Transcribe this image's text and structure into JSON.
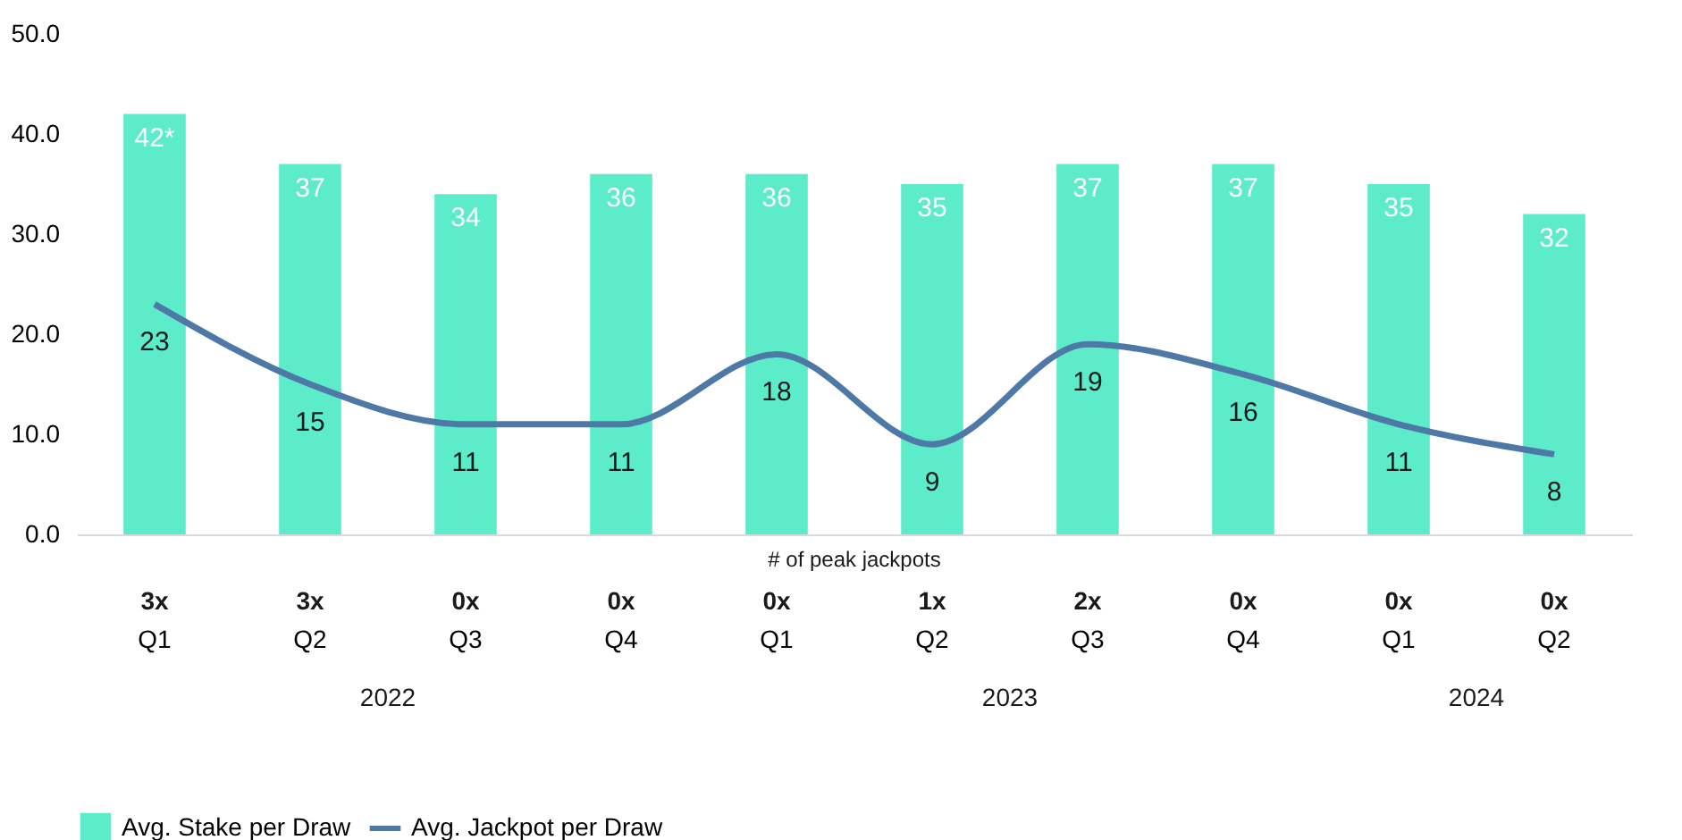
{
  "chart_data": {
    "type": "bar",
    "categories": [
      "Q1",
      "Q2",
      "Q3",
      "Q4",
      "Q1",
      "Q2",
      "Q3",
      "Q4",
      "Q1",
      "Q2"
    ],
    "series": [
      {
        "name": "Avg. Stake per Draw",
        "color": "#5cecc9",
        "values": [
          42,
          37,
          34,
          36,
          36,
          35,
          37,
          37,
          35,
          32
        ],
        "value_labels": [
          "42*",
          "37",
          "34",
          "36",
          "36",
          "35",
          "37",
          "37",
          "35",
          "32"
        ]
      },
      {
        "name": "Avg. Jackpot per Draw",
        "type": "line",
        "color": "#4e79a7",
        "values": [
          23,
          15,
          11,
          11,
          18,
          9,
          19,
          16,
          11,
          8
        ]
      }
    ],
    "data_labels": true,
    "ylim": [
      0,
      50
    ],
    "yticks": [
      {
        "value": 0,
        "label": "0.0"
      },
      {
        "value": 10,
        "label": "10.0"
      },
      {
        "value": 20,
        "label": "20.0"
      },
      {
        "value": 30,
        "label": "30.0"
      },
      {
        "value": 40,
        "label": "40.0"
      },
      {
        "value": 50,
        "label": "50.0"
      }
    ],
    "grid": false,
    "legend": "bottom",
    "annotations": [
      "# of peak jackpots",
      "3x",
      "3x",
      "0x",
      "0x",
      "0x",
      "1x",
      "2x",
      "0x",
      "0x",
      "0x",
      "2022",
      "2023",
      "2024"
    ]
  }
}
